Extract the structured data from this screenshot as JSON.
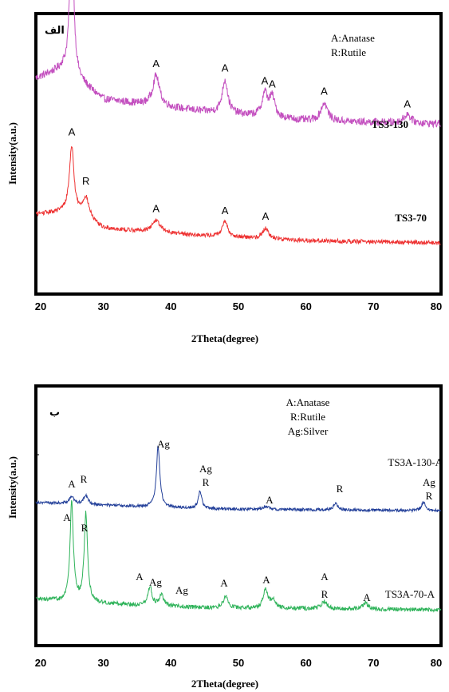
{
  "chart_data": [
    {
      "type": "line",
      "panel_label": "الف",
      "xlabel": "2Theta(degree)",
      "ylabel": "Intensity(a.u.)",
      "xlim": [
        20,
        80
      ],
      "x_ticks": [
        "20",
        "30",
        "40",
        "50",
        "60",
        "70",
        "80"
      ],
      "legend": [
        "A:Anatase",
        "R:Rutile"
      ],
      "legend_placement": "top-right",
      "series": [
        {
          "name": "TS3-130",
          "color": "#c34fbf",
          "baseline": 0.58,
          "noise": 0.05,
          "peaks": [
            [
              25.3,
              1.0,
              0.35
            ],
            [
              37.8,
              0.2,
              0.6
            ],
            [
              48.0,
              0.22,
              0.5
            ],
            [
              53.9,
              0.15,
              0.5
            ],
            [
              55.0,
              0.13,
              0.5
            ],
            [
              62.7,
              0.12,
              0.6
            ],
            [
              75.0,
              0.06,
              0.6
            ]
          ],
          "bg": [
            [
              20,
              0.6
            ],
            [
              24,
              0.66
            ],
            [
              30,
              0.46
            ],
            [
              45,
              0.38
            ],
            [
              60,
              0.32
            ],
            [
              80,
              0.3
            ]
          ],
          "labels": [
            {
              "text": "A",
              "x": 25.3
            },
            {
              "text": "A",
              "x": 37.8
            },
            {
              "text": "A",
              "x": 48.0
            },
            {
              "text": "A",
              "x": 53.9
            },
            {
              "text": "A",
              "x": 55.0
            },
            {
              "text": "A",
              "x": 62.7
            },
            {
              "text": "A",
              "x": 75.0
            }
          ]
        },
        {
          "name": "TS3-70",
          "color": "#ee3333",
          "baseline": 0.0,
          "noise": 0.035,
          "peaks": [
            [
              25.3,
              0.55,
              0.4
            ],
            [
              27.4,
              0.18,
              0.6
            ],
            [
              37.8,
              0.1,
              0.7
            ],
            [
              48.0,
              0.12,
              0.5
            ],
            [
              54.0,
              0.09,
              0.5
            ]
          ],
          "bg": [
            [
              20,
              0.32
            ],
            [
              25,
              0.34
            ],
            [
              30,
              0.2
            ],
            [
              45,
              0.14
            ],
            [
              60,
              0.1
            ],
            [
              80,
              0.08
            ]
          ],
          "labels": [
            {
              "text": "A",
              "x": 25.3
            },
            {
              "text": "R",
              "x": 27.4
            },
            {
              "text": "A",
              "x": 37.8
            },
            {
              "text": "A",
              "x": 48.0
            },
            {
              "text": "A",
              "x": 54.0
            }
          ]
        }
      ]
    },
    {
      "type": "line",
      "panel_label": "ب",
      "xlabel": "2Theta(degree)",
      "ylabel": "Intensity(a.u.)",
      "xlim": [
        20,
        80
      ],
      "x_ticks": [
        "20",
        "30",
        "40",
        "50",
        "60",
        "70",
        "80"
      ],
      "legend": [
        "A:Anatase",
        "R:Rutile",
        "Ag:Silver"
      ],
      "legend_placement": "top-right",
      "series": [
        {
          "name": "TS3A-130-A",
          "color": "#223f99",
          "peaks": [
            [
              25.3,
              0.1,
              0.4
            ],
            [
              27.4,
              0.12,
              0.4
            ],
            [
              38.1,
              0.85,
              0.3
            ],
            [
              44.3,
              0.25,
              0.3
            ],
            [
              54.0,
              0.04,
              0.5
            ],
            [
              64.4,
              0.1,
              0.35
            ],
            [
              77.4,
              0.12,
              0.35
            ]
          ],
          "bg": [
            [
              20,
              0.16
            ],
            [
              30,
              0.12
            ],
            [
              45,
              0.07
            ],
            [
              80,
              0.04
            ]
          ],
          "labels": [
            {
              "text": "A",
              "x": 24.5
            },
            {
              "text": "R",
              "x": 26.6
            },
            {
              "text": "Ag",
              "x": 38.1
            },
            {
              "text": "Ag",
              "x": 44.3
            },
            {
              "text": "R",
              "x": 44.3
            },
            {
              "text": "A",
              "x": 54.0
            },
            {
              "text": "R",
              "x": 64.4
            },
            {
              "text": "Ag",
              "x": 77.4
            },
            {
              "text": "R",
              "x": 77.4
            }
          ]
        },
        {
          "name": "TS3A-70-A",
          "color": "#2fb35a",
          "peaks": [
            [
              25.3,
              0.95,
              0.3
            ],
            [
              27.4,
              0.85,
              0.3
            ],
            [
              36.9,
              0.18,
              0.35
            ],
            [
              38.6,
              0.1,
              0.4
            ],
            [
              48.1,
              0.12,
              0.4
            ],
            [
              54.0,
              0.18,
              0.4
            ],
            [
              55.1,
              0.08,
              0.4
            ],
            [
              62.7,
              0.07,
              0.5
            ],
            [
              68.8,
              0.06,
              0.5
            ]
          ],
          "bg": [
            [
              20,
              0.16
            ],
            [
              30,
              0.12
            ],
            [
              45,
              0.08
            ],
            [
              80,
              0.06
            ]
          ],
          "labels": [
            {
              "text": "A",
              "x": 25.3
            },
            {
              "text": "R",
              "x": 27.4
            },
            {
              "text": "A",
              "x": 36.9
            },
            {
              "text": "Ag",
              "x": 38.6
            },
            {
              "text": "Ag",
              "x": 41.8
            },
            {
              "text": "A",
              "x": 48.1
            },
            {
              "text": "A",
              "x": 54.0
            },
            {
              "text": "A",
              "x": 62.7
            },
            {
              "text": "R",
              "x": 62.7
            },
            {
              "text": "A",
              "x": 68.8
            }
          ]
        }
      ]
    }
  ]
}
